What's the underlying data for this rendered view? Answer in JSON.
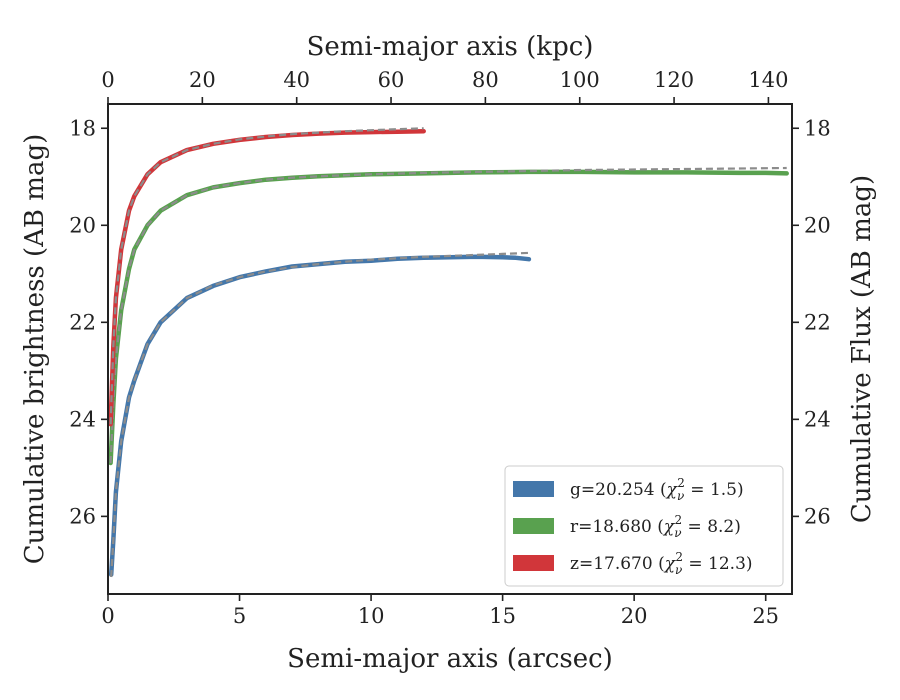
{
  "chart_data": {
    "type": "line",
    "xlabel": "Semi-major axis (arcsec)",
    "ylabel": "Cumulative brightness (AB mag)",
    "x2label": "Semi-major axis (kpc)",
    "y2label": "Cumulative Flux (AB mag)",
    "xlim": [
      0,
      26
    ],
    "ylim": [
      27.6,
      17.5
    ],
    "x2lim": [
      0,
      145
    ],
    "xticks": [
      0,
      5,
      10,
      15,
      20,
      25
    ],
    "x2ticks": [
      0,
      20,
      40,
      60,
      80,
      100,
      120,
      140
    ],
    "yticks": [
      18,
      20,
      22,
      24,
      26
    ],
    "y_inverted": true,
    "grid": false,
    "legend_position": "lower-right",
    "series": [
      {
        "name": "g=20.254 (χ²ᵥ = 1.5)",
        "legend_main": "g=20.254 (",
        "legend_chi_sup": "2",
        "legend_chi_sub": "ν",
        "legend_tail": " = 1.5)",
        "color": "#4477aa",
        "x": [
          0.12,
          0.2,
          0.3,
          0.5,
          0.8,
          1.0,
          1.5,
          2.0,
          3.0,
          4.0,
          5.0,
          6.0,
          7.0,
          8.0,
          9.0,
          10.0,
          11.0,
          12.0,
          13.0,
          14.0,
          15.0,
          15.5,
          16.0
        ],
        "y": [
          27.2,
          26.5,
          25.5,
          24.45,
          23.55,
          23.2,
          22.45,
          22.0,
          21.5,
          21.25,
          21.07,
          20.95,
          20.85,
          20.8,
          20.75,
          20.73,
          20.69,
          20.67,
          20.66,
          20.65,
          20.66,
          20.67,
          20.7
        ]
      },
      {
        "name": "r=18.680 (χ²ᵥ = 8.2)",
        "legend_main": "r=18.680 (",
        "legend_chi_sup": "2",
        "legend_chi_sub": "ν",
        "legend_tail": " = 8.2)",
        "color": "#59a14f",
        "x": [
          0.1,
          0.2,
          0.3,
          0.5,
          0.8,
          1.0,
          1.5,
          2.0,
          3.0,
          4.0,
          5.0,
          6.0,
          7.0,
          8.0,
          9.0,
          10.0,
          12.0,
          14.0,
          16.0,
          18.0,
          20.0,
          22.0,
          24.0,
          25.0,
          25.8
        ],
        "y": [
          24.9,
          23.7,
          22.75,
          21.75,
          20.9,
          20.5,
          20.0,
          19.7,
          19.38,
          19.22,
          19.13,
          19.06,
          19.02,
          18.99,
          18.97,
          18.95,
          18.93,
          18.91,
          18.9,
          18.9,
          18.91,
          18.91,
          18.92,
          18.92,
          18.93
        ]
      },
      {
        "name": "z=17.670 (χ²ᵥ = 12.3)",
        "legend_main": "z=17.670 (",
        "legend_chi_sup": "2",
        "legend_chi_sub": "ν",
        "legend_tail": " = 12.3)",
        "color": "#d1363a",
        "x": [
          0.1,
          0.2,
          0.3,
          0.5,
          0.8,
          1.0,
          1.5,
          2.0,
          3.0,
          4.0,
          5.0,
          6.0,
          7.0,
          8.0,
          9.0,
          10.0,
          11.0,
          12.0
        ],
        "y": [
          24.1,
          22.5,
          21.5,
          20.5,
          19.7,
          19.4,
          18.95,
          18.7,
          18.45,
          18.32,
          18.24,
          18.18,
          18.14,
          18.11,
          18.09,
          18.08,
          18.07,
          18.06
        ]
      }
    ],
    "models": [
      {
        "color": "#8c8c8c",
        "style": "dashed",
        "x": [
          0.12,
          0.2,
          0.3,
          0.5,
          0.8,
          1.0,
          1.5,
          2.0,
          3.0,
          4.0,
          5.0,
          6.0,
          7.0,
          8.0,
          9.0,
          10.0,
          11.0,
          12.0,
          13.0,
          14.0,
          15.0,
          16.0
        ],
        "y": [
          27.25,
          26.5,
          25.5,
          24.45,
          23.55,
          23.2,
          22.45,
          22.0,
          21.5,
          21.24,
          21.07,
          20.95,
          20.86,
          20.8,
          20.75,
          20.71,
          20.68,
          20.65,
          20.63,
          20.61,
          20.59,
          20.57
        ]
      },
      {
        "color": "#8c8c8c",
        "style": "dashed",
        "x": [
          0.1,
          0.2,
          0.3,
          0.5,
          0.8,
          1.0,
          1.5,
          2.0,
          3.0,
          4.0,
          5.0,
          6.0,
          7.0,
          8.0,
          9.0,
          10.0,
          12.0,
          14.0,
          16.0,
          18.0,
          20.0,
          22.0,
          24.0,
          25.8
        ],
        "y": [
          24.9,
          23.7,
          22.75,
          21.75,
          20.9,
          20.5,
          20.0,
          19.7,
          19.38,
          19.22,
          19.13,
          19.06,
          19.02,
          18.99,
          18.97,
          18.95,
          18.92,
          18.9,
          18.88,
          18.86,
          18.85,
          18.84,
          18.83,
          18.82
        ]
      },
      {
        "color": "#8c8c8c",
        "style": "dashed",
        "x": [
          0.1,
          0.2,
          0.3,
          0.5,
          0.8,
          1.0,
          1.5,
          2.0,
          3.0,
          4.0,
          5.0,
          6.0,
          7.0,
          8.0,
          9.0,
          10.0,
          11.0,
          12.0
        ],
        "y": [
          24.1,
          22.5,
          21.5,
          20.5,
          19.7,
          19.4,
          18.95,
          18.7,
          18.45,
          18.32,
          18.23,
          18.17,
          18.12,
          18.09,
          18.06,
          18.04,
          18.02,
          18.0
        ]
      }
    ]
  }
}
